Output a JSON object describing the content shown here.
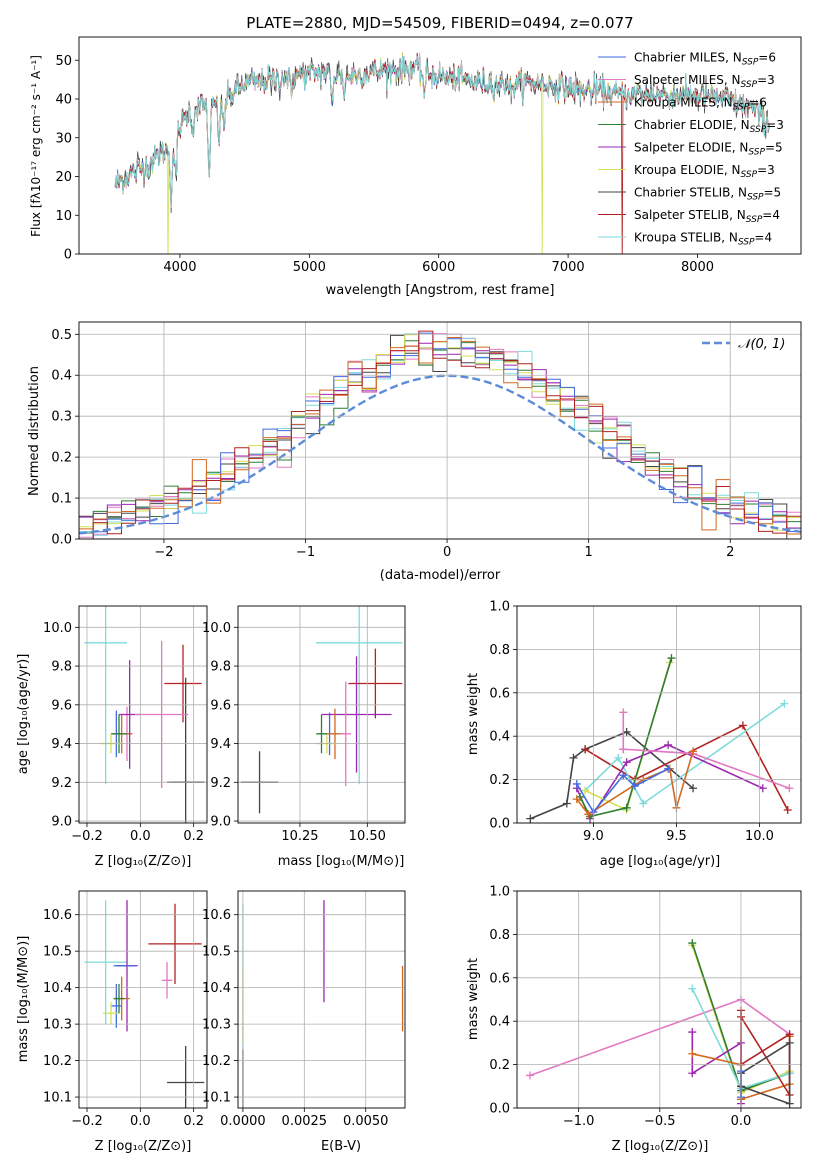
{
  "colors": {
    "c_miles": "#4169e1",
    "s_miles": "#e377c2",
    "k_miles": "#d2691e",
    "c_elodie": "#2e7d32",
    "s_elodie": "#9c27b0",
    "k_elodie": "#d4e157",
    "c_stelib": "#444444",
    "s_stelib": "#b22222",
    "k_stelib": "#7fdbdb",
    "normal": "#5b8bd9"
  },
  "chart_data": [
    {
      "id": "spectrum",
      "type": "line",
      "title": "PLATE=2880, MJD=54509, FIBERID=0494, z=0.077",
      "xlabel": "wavelength [Angstrom, rest frame]",
      "ylabel": "Flux [fλ10⁻¹⁷ erg cm⁻² s⁻¹ A⁻¹]",
      "xlim": [
        3220,
        8800
      ],
      "ylim": [
        0,
        56
      ],
      "xticks": [
        "4000",
        "5000",
        "6000",
        "7000",
        "8000"
      ],
      "yticks": [
        "0",
        "10",
        "20",
        "30",
        "40",
        "50"
      ],
      "legend_position": "top-right",
      "legend": [
        {
          "label": "Chabrier MILES, N",
          "sub": "SSP",
          "suffix": "=6",
          "color": "c_miles"
        },
        {
          "label": "Salpeter MILES, N",
          "sub": "SSP",
          "suffix": "=3",
          "color": "s_miles"
        },
        {
          "label": "Kroupa MILES, N",
          "sub": "SSP",
          "suffix": "=6",
          "color": "k_miles"
        },
        {
          "label": "Chabrier ELODIE, N",
          "sub": "SSP",
          "suffix": "=3",
          "color": "c_elodie"
        },
        {
          "label": "Salpeter ELODIE, N",
          "sub": "SSP",
          "suffix": "=5",
          "color": "s_elodie"
        },
        {
          "label": "Kroupa ELODIE, N",
          "sub": "SSP",
          "suffix": "=3",
          "color": "k_elodie"
        },
        {
          "label": "Chabrier STELIB, N",
          "sub": "SSP",
          "suffix": "=5",
          "color": "c_stelib"
        },
        {
          "label": "Salpeter STELIB, N",
          "sub": "SSP",
          "suffix": "=4",
          "color": "s_stelib"
        },
        {
          "label": "Kroupa STELIB, N",
          "sub": "SSP",
          "suffix": "=4",
          "color": "k_stelib"
        }
      ],
      "continuum": [
        [
          3500,
          18
        ],
        [
          3700,
          22
        ],
        [
          3900,
          27
        ],
        [
          4000,
          33
        ],
        [
          4100,
          38
        ],
        [
          4300,
          39
        ],
        [
          4500,
          44
        ],
        [
          4700,
          45
        ],
        [
          4900,
          46
        ],
        [
          5100,
          47
        ],
        [
          5300,
          46
        ],
        [
          5500,
          47
        ],
        [
          5800,
          48
        ],
        [
          6000,
          46
        ],
        [
          6200,
          45
        ],
        [
          6400,
          44
        ],
        [
          6600,
          44
        ],
        [
          6800,
          44
        ],
        [
          7000,
          43
        ],
        [
          7200,
          42
        ],
        [
          7400,
          41
        ],
        [
          7700,
          41
        ],
        [
          8000,
          41
        ],
        [
          8200,
          40
        ],
        [
          8400,
          38
        ],
        [
          8550,
          34
        ]
      ],
      "dips": [
        [
          3933,
          -14
        ],
        [
          3968,
          -12
        ],
        [
          4101,
          -6
        ],
        [
          4227,
          -20
        ],
        [
          4304,
          -9
        ],
        [
          4340,
          -7
        ],
        [
          4861,
          -5
        ],
        [
          5175,
          -7
        ],
        [
          5270,
          -4
        ],
        [
          5890,
          -6
        ],
        [
          6563,
          -3
        ]
      ]
    },
    {
      "id": "residuals",
      "type": "line",
      "xlabel": "(data-model)/error",
      "ylabel": "Normed distribution",
      "xlim": [
        -2.6,
        2.5
      ],
      "ylim": [
        0,
        0.53
      ],
      "xticks": [
        "-2",
        "-1",
        "0",
        "1",
        "2"
      ],
      "yticks": [
        "0.0",
        "0.1",
        "0.2",
        "0.3",
        "0.4",
        "0.5"
      ],
      "legend": "𝒩(0, 1)",
      "legend_position": "top-right"
    },
    {
      "id": "age_vs_Z",
      "type": "scatter",
      "xlabel": "Z [log₁₀(Z/Z⊙)]",
      "ylabel": "age  [log₁₀(age/yr)]",
      "xlim": [
        -0.23,
        0.25
      ],
      "ylim": [
        8.99,
        10.11
      ],
      "xticks": [
        "-0.2",
        "0.0",
        "0.2"
      ],
      "yticks": [
        "9.0",
        "9.2",
        "9.4",
        "9.6",
        "9.8",
        "10.0"
      ],
      "points": [
        {
          "s": "c_miles",
          "x": -0.09,
          "y": 9.45,
          "xerr": 0.02,
          "yerr": 0.12
        },
        {
          "s": "s_miles",
          "x": -0.05,
          "y": 9.45,
          "xerr": 0.02,
          "yerr": 0.14
        },
        {
          "s": "k_miles",
          "x": -0.07,
          "y": 9.45,
          "xerr": 0.04,
          "yerr": 0.1
        },
        {
          "s": "c_elodie",
          "x": -0.08,
          "y": 9.45,
          "xerr": 0.03,
          "yerr": 0.1
        },
        {
          "s": "s_elodie",
          "x": -0.04,
          "y": 9.55,
          "xerr": 0.04,
          "yerr": 0.28
        },
        {
          "s": "k_elodie",
          "x": -0.11,
          "y": 9.4,
          "xerr": 0.04,
          "yerr": 0.05
        },
        {
          "s": "c_stelib",
          "x": 0.17,
          "y": 9.2,
          "xerr": 0.07,
          "yerr": 0.54
        },
        {
          "s": "s_stelib",
          "x": 0.16,
          "y": 9.71,
          "xerr": 0.07,
          "yerr": 0.2
        },
        {
          "s": "k_stelib",
          "x": -0.13,
          "y": 9.92,
          "xerr": 0.08,
          "yerr": 0.73
        },
        {
          "s": "s_miles",
          "x": 0.08,
          "y": 9.55,
          "xerr": 0.1,
          "yerr": 0.38
        },
        {
          "s": "c_stelib",
          "x": 0.18,
          "y": 9.2,
          "xerr": 0.06,
          "yerr": 0.0
        }
      ]
    },
    {
      "id": "age_vs_mass",
      "type": "scatter",
      "xlabel": "mass [log₁₀(M/M⊙)]",
      "xlim": [
        10.02,
        10.64
      ],
      "ylim": [
        8.99,
        10.11
      ],
      "xticks": [
        "10.25",
        "10.50"
      ],
      "yticks": [
        "9.0",
        "9.2",
        "9.4",
        "9.6",
        "9.8",
        "10.0"
      ],
      "points": [
        {
          "s": "c_stelib",
          "x": 10.1,
          "y": 9.2,
          "xerr": 0.07,
          "yerr": 0.16
        },
        {
          "s": "k_stelib",
          "x": 10.47,
          "y": 9.92,
          "xerr": 0.16,
          "yerr": 0.73
        },
        {
          "s": "s_stelib",
          "x": 10.53,
          "y": 9.71,
          "xerr": 0.1,
          "yerr": 0.18
        },
        {
          "s": "s_elodie",
          "x": 10.46,
          "y": 9.55,
          "xerr": 0.13,
          "yerr": 0.3
        },
        {
          "s": "c_miles",
          "x": 10.36,
          "y": 9.45,
          "xerr": 0.04,
          "yerr": 0.11
        },
        {
          "s": "k_miles",
          "x": 10.38,
          "y": 9.45,
          "xerr": 0.04,
          "yerr": 0.13
        },
        {
          "s": "k_elodie",
          "x": 10.35,
          "y": 9.4,
          "xerr": 0.04,
          "yerr": 0.05
        },
        {
          "s": "c_elodie",
          "x": 10.33,
          "y": 9.45,
          "xerr": 0.02,
          "yerr": 0.1
        },
        {
          "s": "s_miles",
          "x": 10.42,
          "y": 9.45,
          "xerr": 0.02,
          "yerr": 0.27
        }
      ]
    },
    {
      "id": "mw_vs_age",
      "type": "line",
      "xlabel": "age  [log₁₀(age/yr)]",
      "ylabel": "mass weight",
      "xlim": [
        8.54,
        10.25
      ],
      "ylim": [
        0,
        1
      ],
      "xticks": [
        "9.0",
        "9.5",
        "10.0"
      ],
      "yticks": [
        "0.0",
        "0.2",
        "0.4",
        "0.6",
        "0.8",
        "1.0"
      ],
      "series": [
        {
          "s": "c_stelib",
          "x": [
            8.62,
            8.84,
            8.88,
            8.95,
            9.2,
            9.6
          ],
          "y": [
            0.02,
            0.09,
            0.3,
            0.34,
            0.42,
            0.16
          ]
        },
        {
          "s": "s_stelib",
          "x": [
            8.95,
            9.25,
            9.9,
            10.17
          ],
          "y": [
            0.34,
            0.2,
            0.45,
            0.06
          ]
        },
        {
          "s": "k_stelib",
          "x": [
            8.95,
            9.15,
            9.3,
            10.15
          ],
          "y": [
            0.15,
            0.3,
            0.09,
            0.55
          ]
        },
        {
          "s": "s_elodie",
          "x": [
            8.9,
            8.98,
            9.2,
            9.45,
            10.02
          ],
          "y": [
            0.16,
            0.02,
            0.28,
            0.36,
            0.16
          ]
        },
        {
          "s": "k_elodie",
          "x": [
            8.95,
            9.2,
            9.46
          ],
          "y": [
            0.15,
            0.06,
            0.74
          ]
        },
        {
          "s": "c_elodie",
          "x": [
            8.92,
            8.98,
            9.2,
            9.47
          ],
          "y": [
            0.12,
            0.03,
            0.07,
            0.76
          ]
        },
        {
          "s": "s_miles",
          "x": [
            9.18,
            9.6,
            10.18
          ],
          "y": [
            0.34,
            0.32,
            0.16
          ]
        },
        {
          "s": "k_miles",
          "x": [
            8.9,
            8.97,
            9.3,
            9.46,
            9.5,
            9.6
          ],
          "y": [
            0.11,
            0.04,
            0.2,
            0.25,
            0.07,
            0.33
          ]
        },
        {
          "s": "c_miles",
          "x": [
            8.9,
            9.0,
            9.18,
            9.25,
            9.45
          ],
          "y": [
            0.18,
            0.05,
            0.22,
            0.17,
            0.25
          ]
        },
        {
          "s": "s_miles",
          "x": [
            9.18,
            9.18
          ],
          "y": [
            0.34,
            0.51
          ]
        }
      ]
    },
    {
      "id": "mass_vs_Z",
      "type": "scatter",
      "xlabel": "Z [log₁₀(Z/Z⊙)]",
      "ylabel": "mass [log₁₀(M/M⊙)]",
      "xlim": [
        -0.23,
        0.25
      ],
      "ylim": [
        10.07,
        10.665
      ],
      "xticks": [
        "-0.2",
        "0.0",
        "0.2"
      ],
      "yticks": [
        "10.1",
        "10.2",
        "10.3",
        "10.4",
        "10.5",
        "10.6"
      ],
      "points": [
        {
          "s": "c_stelib",
          "x": 0.17,
          "y": 10.14,
          "xerr": 0.07,
          "yerr": 0.1
        },
        {
          "s": "s_stelib",
          "x": 0.13,
          "y": 10.52,
          "xerr": 0.1,
          "yerr": 0.11
        },
        {
          "s": "k_stelib",
          "x": -0.13,
          "y": 10.47,
          "xerr": 0.08,
          "yerr": 0.17
        },
        {
          "s": "s_elodie",
          "x": -0.05,
          "y": 10.46,
          "xerr": 0.04,
          "yerr": 0.18
        },
        {
          "s": "c_miles",
          "x": -0.09,
          "y": 10.35,
          "xerr": 0.02,
          "yerr": 0.06
        },
        {
          "s": "k_miles",
          "x": -0.07,
          "y": 10.37,
          "xerr": 0.03,
          "yerr": 0.06
        },
        {
          "s": "k_elodie",
          "x": -0.11,
          "y": 10.33,
          "xerr": 0.03,
          "yerr": 0.03
        },
        {
          "s": "c_elodie",
          "x": -0.08,
          "y": 10.37,
          "xerr": 0.02,
          "yerr": 0.04
        },
        {
          "s": "s_miles",
          "x": 0.1,
          "y": 10.42,
          "xerr": 0.02,
          "yerr": 0.05
        },
        {
          "s": "c_miles",
          "x": -0.06,
          "y": 10.46,
          "xerr": 0.04,
          "yerr": 0.0
        }
      ]
    },
    {
      "id": "mass_vs_ebv",
      "type": "scatter",
      "xlabel": "E(B-V)",
      "xlim": [
        -0.0002,
        0.0066
      ],
      "ylim": [
        10.07,
        10.665
      ],
      "xticks": [
        "0.0000",
        "0.0025",
        "0.0050"
      ],
      "yticks": [
        "10.1",
        "10.2",
        "10.3",
        "10.4",
        "10.5",
        "10.6"
      ],
      "points": [
        {
          "s": "c_stelib",
          "x": 0.0,
          "y": 10.14,
          "xerr": 0,
          "yerr": 0.09
        },
        {
          "s": "k_stelib",
          "x": 0.0,
          "y": 10.43,
          "xerr": 0,
          "yerr": 0.2
        },
        {
          "s": "k_elodie",
          "x": 0.0,
          "y": 10.35,
          "xerr": 0,
          "yerr": 0.1
        },
        {
          "s": "s_elodie",
          "x": 0.0033,
          "y": 10.5,
          "xerr": 0,
          "yerr": 0.14
        },
        {
          "s": "k_miles",
          "x": 0.0065,
          "y": 10.37,
          "xerr": 0,
          "yerr": 0.09
        }
      ]
    },
    {
      "id": "mw_vs_Z",
      "type": "line",
      "xlabel": "Z [log₁₀(Z/Z⊙)]",
      "ylabel": "mass weight",
      "xlim": [
        -1.38,
        0.37
      ],
      "ylim": [
        0,
        1
      ],
      "xticks": [
        "-1.0",
        "-0.5",
        "0.0"
      ],
      "yticks": [
        "0.0",
        "0.2",
        "0.4",
        "0.6",
        "0.8",
        "1.0"
      ],
      "series": [
        {
          "s": "s_miles",
          "x": [
            -1.3,
            0.0,
            0.3
          ],
          "y": [
            0.15,
            0.5,
            0.34
          ]
        },
        {
          "s": "k_elodie",
          "x": [
            -0.3,
            0.0,
            0.3
          ],
          "y": [
            0.75,
            0.07,
            0.17
          ]
        },
        {
          "s": "c_elodie",
          "x": [
            -0.3,
            0.0,
            0.3
          ],
          "y": [
            0.76,
            0.08,
            0.16
          ]
        },
        {
          "s": "k_stelib",
          "x": [
            -0.3,
            0.0,
            0.3
          ],
          "y": [
            0.55,
            0.09,
            0.16
          ]
        },
        {
          "s": "s_elodie",
          "x": [
            -0.3,
            -0.3,
            0.0,
            0.0
          ],
          "y": [
            0.35,
            0.16,
            0.3,
            0.02
          ]
        },
        {
          "s": "k_miles",
          "x": [
            -0.3,
            0.0,
            0.0,
            0.3,
            0.3
          ],
          "y": [
            0.25,
            0.2,
            0.04,
            0.11,
            0.33
          ]
        },
        {
          "s": "s_stelib",
          "x": [
            0.0,
            0.0,
            0.3,
            0.3,
            0.0
          ],
          "y": [
            0.45,
            0.2,
            0.34,
            0.06,
            0.42
          ]
        },
        {
          "s": "c_stelib",
          "x": [
            0.0,
            0.3,
            0.3,
            0.0
          ],
          "y": [
            0.16,
            0.3,
            0.02,
            0.1
          ]
        },
        {
          "s": "c_miles",
          "x": [
            0.0,
            0.0
          ],
          "y": [
            0.05,
            0.17
          ]
        }
      ]
    }
  ]
}
